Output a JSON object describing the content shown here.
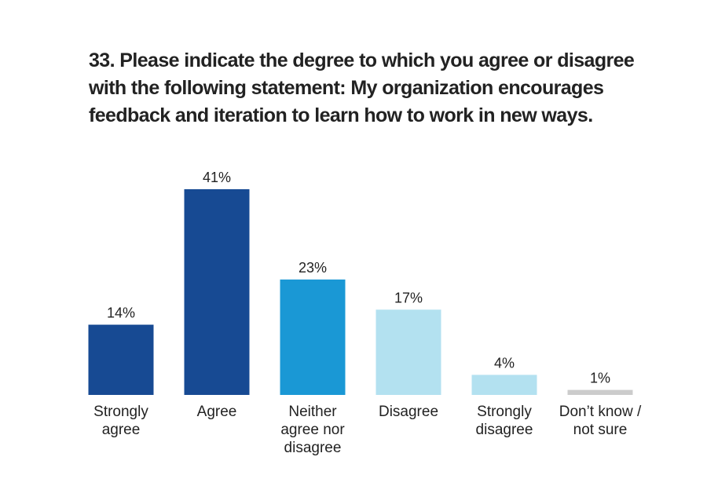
{
  "chart_data": {
    "type": "bar",
    "title": "33.  Please indicate the degree to which you agree or disagree with the following statement: My organization encourages feedback and iteration to learn how to work in new ways.",
    "categories": [
      "Strongly agree",
      "Agree",
      "Neither agree nor disagree",
      "Disagree",
      "Strongly disagree",
      "Don’t know / not sure"
    ],
    "values": [
      14,
      41,
      23,
      17,
      4,
      1
    ],
    "value_labels": [
      "14%",
      "41%",
      "23%",
      "17%",
      "4%",
      "1%"
    ],
    "colors": [
      "#174a93",
      "#174a93",
      "#1a98d5",
      "#b3e1f0",
      "#b3e1f0",
      "#cccccc"
    ]
  }
}
